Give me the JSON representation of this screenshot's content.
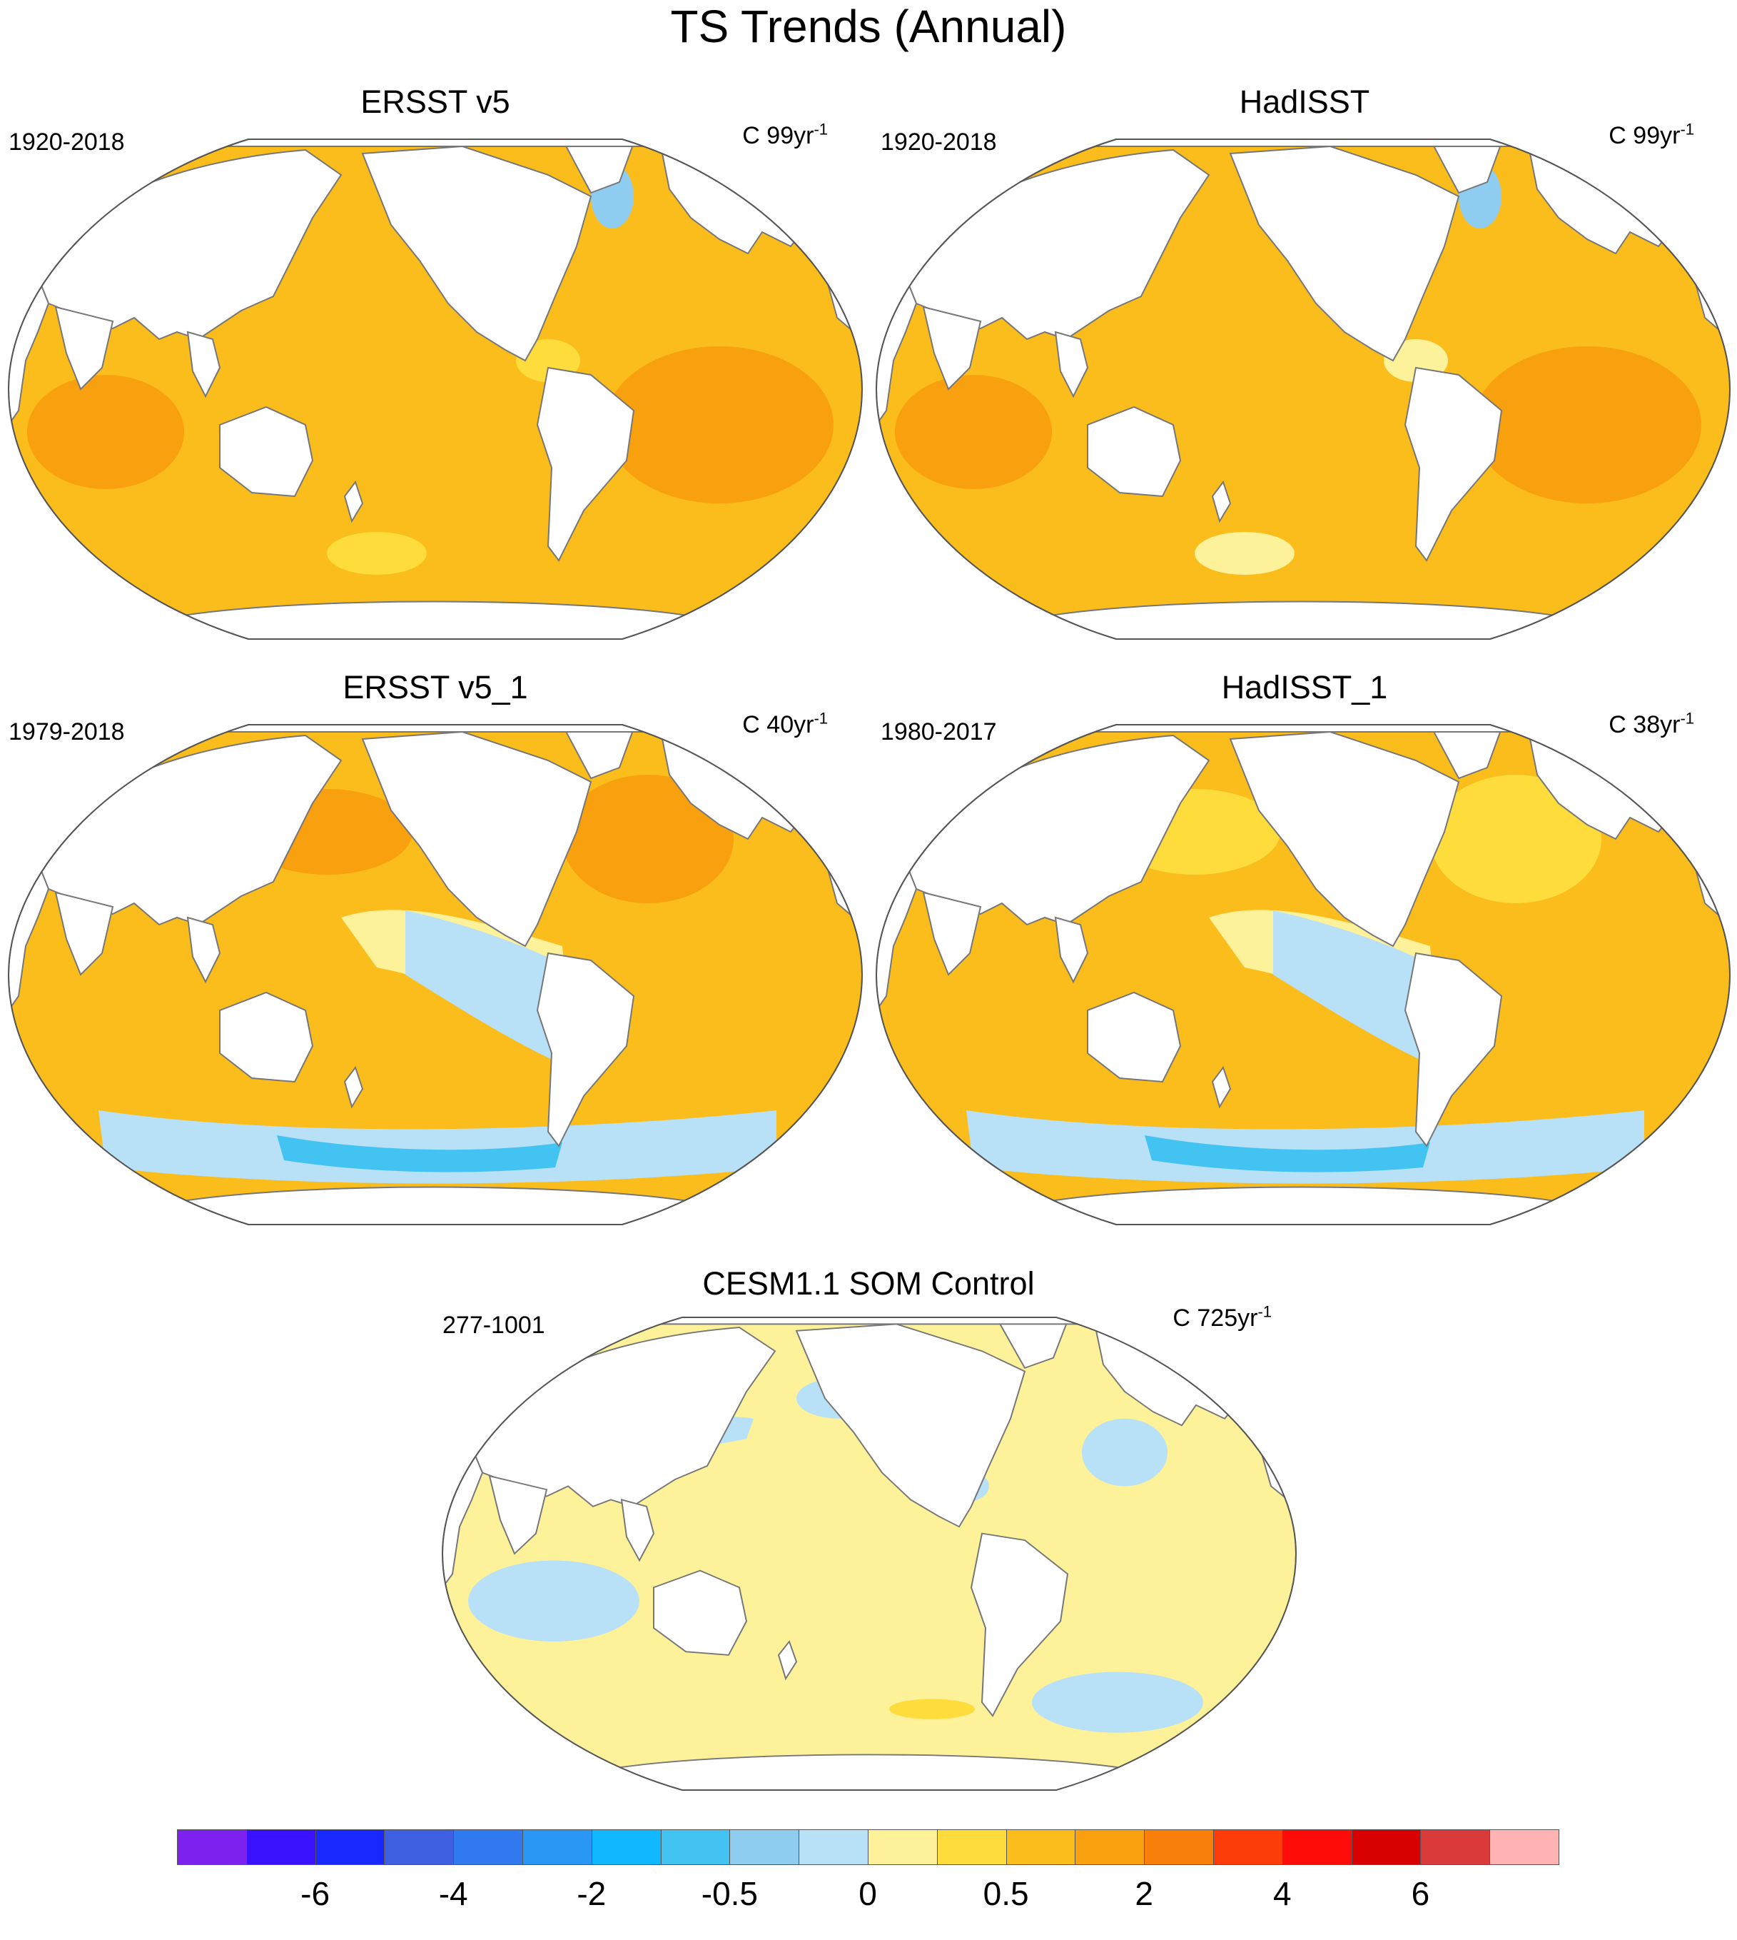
{
  "title": "TS Trends (Annual)",
  "panels": [
    {
      "id": "p1",
      "title": "ERSST v5",
      "period": "1920-2018",
      "units_base": "C 99yr",
      "units_exp": "-1",
      "field": "warm",
      "colors": {
        "ocean": "#fbbd1b",
        "patch": "#f9a00f",
        "spot": "#fddc3c",
        "cold": "#8fcdf0"
      }
    },
    {
      "id": "p2",
      "title": "HadISST",
      "period": "1920-2018",
      "units_base": "C 99yr",
      "units_exp": "-1",
      "field": "warm",
      "colors": {
        "ocean": "#fbbd1b",
        "patch": "#f9a00f",
        "spot": "#fdf29a",
        "cold": "#8fcdf0"
      }
    },
    {
      "id": "p3",
      "title": "ERSST v5_1",
      "period": "1979-2018",
      "units_base": "C 40yr",
      "units_exp": "-1",
      "field": "mixed",
      "colors": {
        "ocean": "#fbbd1b",
        "patch": "#f9a00f",
        "spot": "#fdf29a",
        "cold": "#b8e0f6"
      }
    },
    {
      "id": "p4",
      "title": "HadISST_1",
      "period": "1980-2017",
      "units_base": "C 38yr",
      "units_exp": "-1",
      "field": "mixed",
      "colors": {
        "ocean": "#fbbd1b",
        "patch": "#fddc3c",
        "spot": "#fdf29a",
        "cold": "#b8e0f6"
      }
    },
    {
      "id": "p5",
      "title": "CESM1.1 SOM Control",
      "period": "277-1001",
      "units_base": "C 725yr",
      "units_exp": "-1",
      "field": "neutral",
      "colors": {
        "ocean": "#fdf29a",
        "patch": "#b8e0f6",
        "spot": "#fddc3c",
        "cold": "#b8e0f6"
      }
    }
  ],
  "colorbar": {
    "colors": [
      "#7d22ee",
      "#3a12ff",
      "#1828ff",
      "#3d5fe0",
      "#3179ee",
      "#2a97f5",
      "#12b8ff",
      "#42c3f2",
      "#8fcdf0",
      "#b8e0f6",
      "#fdf29a",
      "#fddc3c",
      "#fbbd1b",
      "#f9a00f",
      "#f97f0b",
      "#fe3c0a",
      "#fe0c0a",
      "#d90002",
      "#da3a3a",
      "#ffb3b3"
    ],
    "labels": [
      "-6",
      "-4",
      "-2",
      "-0.5",
      "0",
      "0.5",
      "2",
      "4",
      "6"
    ],
    "label_boundaries": [
      2,
      4,
      6,
      8,
      10,
      12,
      14,
      16,
      18
    ]
  },
  "colors": {
    "land": "#ffffff",
    "coast": "#777777"
  }
}
